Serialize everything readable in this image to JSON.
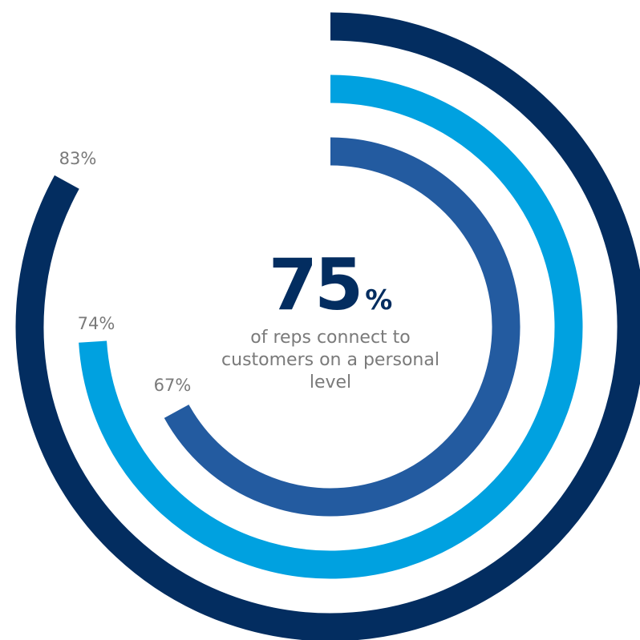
{
  "chart_data": {
    "type": "radial-bar",
    "title": "",
    "series": [
      {
        "label": "83%",
        "value": 83,
        "color": "#032d60"
      },
      {
        "label": "74%",
        "value": 74,
        "color": "#00a1e0"
      },
      {
        "label": "67%",
        "value": 67,
        "color": "#235ba0"
      }
    ],
    "max": 100
  },
  "highlight": {
    "value": "75",
    "unit": "%",
    "caption": "of reps connect to customers on a personal level"
  }
}
